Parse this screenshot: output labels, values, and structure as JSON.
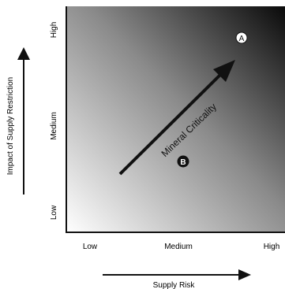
{
  "axes": {
    "y": {
      "label": "Impact of Supply Restriction",
      "ticks": [
        "Low",
        "Medium",
        "High"
      ]
    },
    "x": {
      "label": "Supply Risk",
      "ticks": [
        "Low",
        "Medium",
        "High"
      ]
    }
  },
  "arrow_label": "Mineral Criticality",
  "markers": [
    {
      "label": "A",
      "style": "outlined"
    },
    {
      "label": "B",
      "style": "filled"
    }
  ],
  "colors": {
    "gradient_light": "#ffffff",
    "gradient_mid": "#8a8a8a",
    "gradient_dark": "#0a0a0a",
    "ink": "#111111",
    "marker_fill_light": "#ffffff",
    "marker_fill_dark": "#111111"
  }
}
